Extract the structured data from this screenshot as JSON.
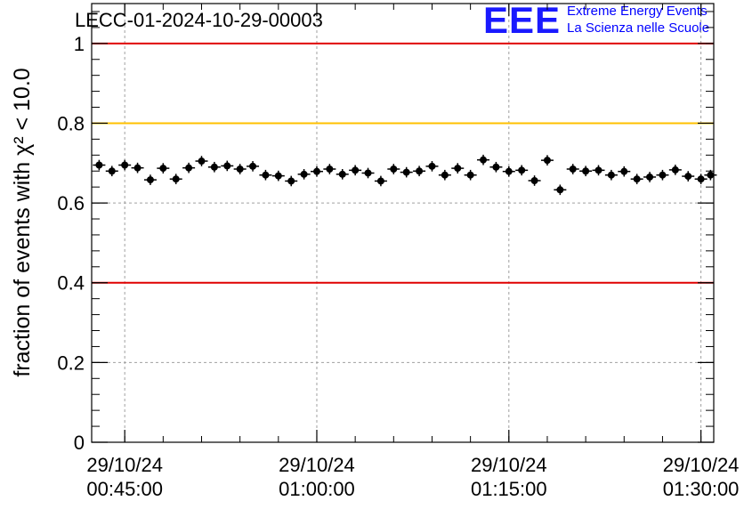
{
  "header": {
    "title": "LECC-01-2024-10-29-00003",
    "logo_mark": "EEE",
    "logo_line1": "Extreme Energy Events",
    "logo_line2": "La Scienza nelle Scuole"
  },
  "chart_data": {
    "type": "scatter",
    "ylabel": "fraction of events with χ² < 10.0",
    "ylim": [
      0,
      1.1
    ],
    "yticks": [
      0,
      0.2,
      0.4,
      0.6,
      0.8,
      1
    ],
    "ytick_labels": [
      "0",
      "0.2",
      "0.4",
      "0.6",
      "0.8",
      "1"
    ],
    "xlim": [
      "29/10/24 00:42:25",
      "29/10/24 01:31:00"
    ],
    "xticks": [
      "29/10/24 00:45:00",
      "29/10/24 01:00:00",
      "29/10/24 01:15:00",
      "29/10/24 01:30:00"
    ],
    "xtick_labels": [
      [
        "29/10/24",
        "00:45:00"
      ],
      [
        "29/10/24",
        "01:00:00"
      ],
      [
        "29/10/24",
        "01:15:00"
      ],
      [
        "29/10/24",
        "01:30:00"
      ]
    ],
    "grid": true,
    "reference_lines": [
      {
        "y": 1.0,
        "color": "#e00000"
      },
      {
        "y": 0.8,
        "color": "#ffc000"
      },
      {
        "y": 0.4,
        "color": "#e00000"
      }
    ],
    "series": [
      {
        "color": "#000000",
        "x": [
          "00:43:00",
          "00:44:00",
          "00:45:00",
          "00:46:00",
          "00:47:00",
          "00:48:00",
          "00:49:00",
          "00:50:00",
          "00:51:00",
          "00:52:00",
          "00:53:00",
          "00:54:00",
          "00:55:00",
          "00:56:00",
          "00:57:00",
          "00:58:00",
          "00:59:00",
          "01:00:00",
          "01:01:00",
          "01:02:00",
          "01:03:00",
          "01:04:00",
          "01:05:00",
          "01:06:00",
          "01:07:00",
          "01:08:00",
          "01:09:00",
          "01:10:00",
          "01:11:00",
          "01:12:00",
          "01:13:00",
          "01:14:00",
          "01:15:00",
          "01:16:00",
          "01:17:00",
          "01:18:00",
          "01:19:00",
          "01:20:00",
          "01:21:00",
          "01:22:00",
          "01:23:00",
          "01:24:00",
          "01:25:00",
          "01:26:00",
          "01:27:00",
          "01:28:00",
          "01:29:00",
          "01:30:00",
          "01:30:45"
        ],
        "y": [
          0.695,
          0.68,
          0.695,
          0.688,
          0.658,
          0.687,
          0.66,
          0.688,
          0.705,
          0.69,
          0.693,
          0.685,
          0.692,
          0.67,
          0.668,
          0.655,
          0.672,
          0.679,
          0.685,
          0.672,
          0.682,
          0.675,
          0.655,
          0.685,
          0.677,
          0.68,
          0.692,
          0.67,
          0.687,
          0.67,
          0.708,
          0.69,
          0.679,
          0.682,
          0.656,
          0.707,
          0.633,
          0.685,
          0.68,
          0.682,
          0.67,
          0.679,
          0.66,
          0.665,
          0.67,
          0.683,
          0.667,
          0.66,
          0.67
        ],
        "yerr": 0.013
      }
    ]
  }
}
